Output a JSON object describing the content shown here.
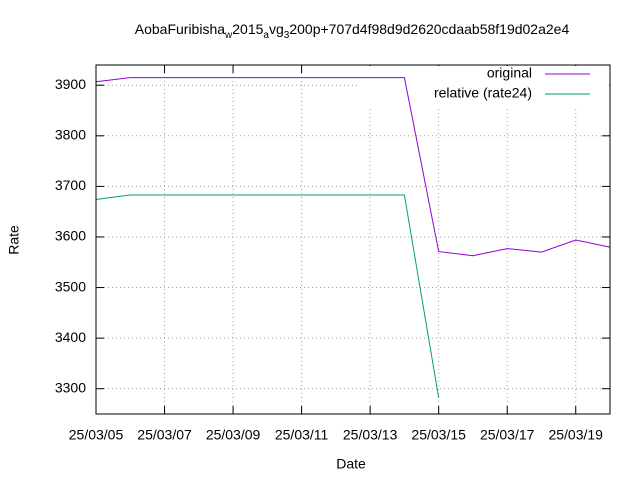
{
  "chart_data": {
    "type": "line",
    "title": [
      {
        "text": "AobaFuribisha"
      },
      {
        "text": "w",
        "subscript": true
      },
      {
        "text": "2015"
      },
      {
        "text": "a",
        "subscript": true
      },
      {
        "text": "vg"
      },
      {
        "text": "3",
        "subscript": true
      },
      {
        "text": "200p+707d4f98d9d2620cdaab58f19d02a2e4"
      }
    ],
    "x_label": "Date",
    "y_label": "Rate",
    "x": [
      "25/03/05",
      "25/03/06",
      "25/03/07",
      "25/03/08",
      "25/03/09",
      "25/03/10",
      "25/03/11",
      "25/03/12",
      "25/03/13",
      "25/03/14",
      "25/03/15",
      "25/03/16",
      "25/03/17",
      "25/03/18",
      "25/03/19",
      "25/03/20"
    ],
    "series": [
      {
        "name": "original",
        "color": "#9400d3",
        "values": [
          3907,
          3915,
          3915,
          3915,
          3915,
          3915,
          3915,
          3915,
          3915,
          3915,
          3571,
          3563,
          3577,
          3570,
          3594,
          3580
        ]
      },
      {
        "name": "relative (rate24)",
        "color": "#009e73",
        "values": [
          3674,
          3683,
          3683,
          3683,
          3683,
          3683,
          3683,
          3683,
          3683,
          3683,
          3282,
          null,
          null,
          null,
          null,
          null
        ]
      }
    ],
    "xlim": [
      "25/03/05",
      "25/03/20"
    ],
    "xticks": [
      "25/03/05",
      "25/03/07",
      "25/03/09",
      "25/03/11",
      "25/03/13",
      "25/03/15",
      "25/03/17",
      "25/03/19"
    ],
    "ylim": [
      3250,
      3940
    ],
    "yticks": [
      3300,
      3400,
      3500,
      3600,
      3700,
      3800,
      3900
    ],
    "grid": true,
    "legend": "top-right"
  }
}
